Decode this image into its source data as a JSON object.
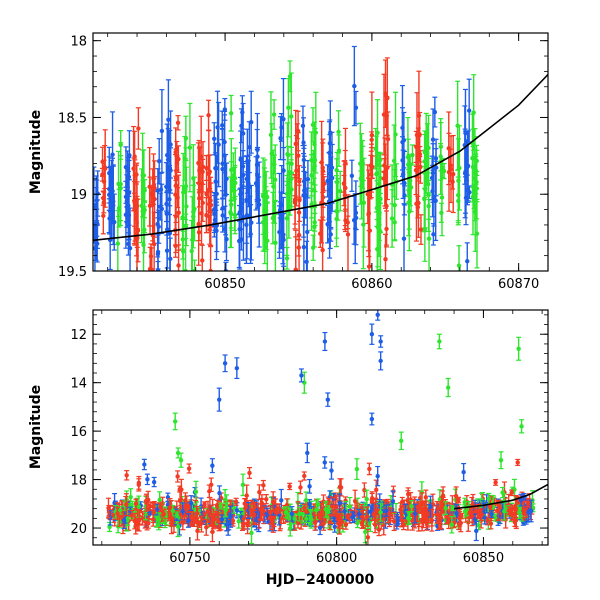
{
  "chart_data": [
    {
      "type": "scatter",
      "xlabel": "",
      "ylabel": "Magnitude",
      "xlim": [
        60841,
        60872
      ],
      "ylim": [
        19.5,
        17.95
      ],
      "x_ticks": [
        60850,
        60860,
        60870
      ],
      "x_tick_labels": [
        "60850",
        "60860",
        "60870"
      ],
      "y_ticks": [
        18,
        18.5,
        19,
        19.5
      ],
      "y_tick_labels": [
        "18",
        "18.5",
        "19",
        "19.5"
      ],
      "series_colors": [
        "#2ee52e",
        "#1e5ee6",
        "#f23a24"
      ],
      "model_curve": {
        "color": "#000000",
        "x": [
          60841,
          60845,
          60849,
          60853,
          60857,
          60860,
          60863,
          60866,
          60868,
          60870,
          60872
        ],
        "y": [
          19.3,
          19.26,
          19.2,
          19.13,
          19.06,
          18.97,
          18.88,
          18.72,
          18.57,
          18.42,
          18.22
        ]
      },
      "approximate_ranges": {
        "x_start": 60841,
        "x_end": 60867,
        "mag_min": 18.0,
        "mag_max": 19.5
      }
    },
    {
      "type": "scatter",
      "xlabel": "HJD−2400000",
      "ylabel": "Magnitude",
      "xlim": [
        60717,
        60872
      ],
      "ylim": [
        20.7,
        11
      ],
      "x_ticks": [
        60750,
        60800,
        60850
      ],
      "x_tick_labels": [
        "60750",
        "60800",
        "60850"
      ],
      "y_ticks": [
        12,
        14,
        16,
        18,
        20
      ],
      "y_tick_labels": [
        "12",
        "14",
        "16",
        "18",
        "20"
      ],
      "series_colors": [
        "#2ee52e",
        "#1e5ee6",
        "#f23a24"
      ],
      "model_curve": {
        "color": "#000000",
        "x": [
          60840,
          60850,
          60860,
          60866,
          60872
        ],
        "y": [
          19.2,
          19.06,
          18.85,
          18.6,
          18.2
        ]
      },
      "outliers": {
        "green": [
          [
            60745,
            15.6
          ],
          [
            60746,
            16.9
          ],
          [
            60747,
            17.2
          ],
          [
            60789,
            14.0
          ],
          [
            60822,
            16.4
          ],
          [
            60835,
            12.3
          ],
          [
            60838,
            14.2
          ],
          [
            60856,
            17.2
          ],
          [
            60862,
            12.6
          ],
          [
            60863,
            15.8
          ]
        ],
        "blue": [
          [
            60760,
            14.7
          ],
          [
            60762,
            13.2
          ],
          [
            60766,
            13.4
          ],
          [
            60788,
            13.7
          ],
          [
            60796,
            12.3
          ],
          [
            60797,
            14.7
          ],
          [
            60812,
            12.0
          ],
          [
            60814,
            11.2
          ],
          [
            60815,
            12.3
          ],
          [
            60815,
            13.1
          ],
          [
            60812,
            15.5
          ],
          [
            60790,
            16.9
          ]
        ]
      },
      "approximate_ranges": {
        "x_start": 60722,
        "x_end": 60867,
        "mag_faint": 20.3,
        "mag_bright": 18.0
      }
    }
  ]
}
